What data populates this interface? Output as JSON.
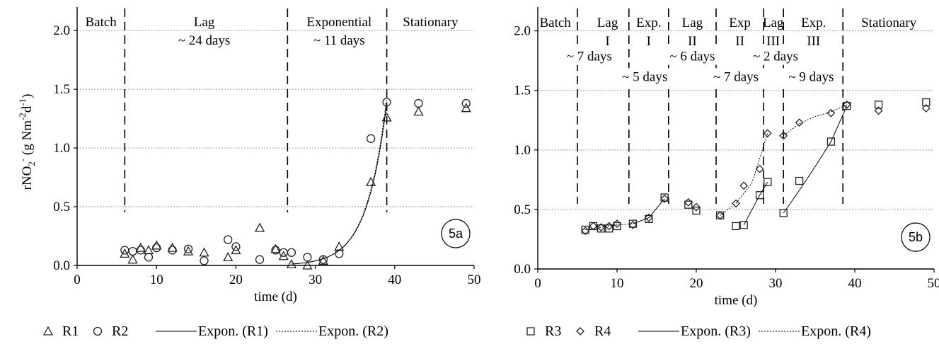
{
  "colors": {
    "grid": "#9a9a9a",
    "axis": "#000000",
    "marker": "#222222",
    "line": "#000000"
  },
  "charts": [
    {
      "tag": "5a",
      "chart_data": {
        "type": "scatter",
        "xlabel": "time (d)",
        "ylabel_parts": [
          "rNO",
          "2",
          "-",
          " (g Nm",
          "-2",
          "d",
          "-1",
          ")"
        ],
        "xlim": [
          0,
          50
        ],
        "ylim": [
          0,
          2.2
        ],
        "xticks": [
          0,
          10,
          20,
          30,
          40,
          50
        ],
        "yticks": [
          0.0,
          0.5,
          1.0,
          1.5,
          2.0
        ],
        "xtick_labels": [
          "0",
          "10",
          "20",
          "30",
          "40",
          "50"
        ],
        "ytick_labels": [
          "0.0",
          "0.5",
          "1.0",
          "1.5",
          "2.0"
        ],
        "grid": "horizontal dotted",
        "series": [
          {
            "name": "R1",
            "marker": "triangle",
            "points": [
              [
                6,
                0.1
              ],
              [
                7,
                0.05
              ],
              [
                8,
                0.15
              ],
              [
                9,
                0.13
              ],
              [
                10,
                0.17
              ],
              [
                12,
                0.15
              ],
              [
                14,
                0.12
              ],
              [
                16,
                0.11
              ],
              [
                19,
                0.07
              ],
              [
                20,
                0.13
              ],
              [
                23,
                0.32
              ],
              [
                25,
                0.14
              ],
              [
                26,
                0.08
              ],
              [
                27,
                0.01
              ],
              [
                29,
                0.0
              ],
              [
                31,
                0.04
              ],
              [
                33,
                0.16
              ],
              [
                37,
                0.71
              ],
              [
                39,
                1.26
              ],
              [
                43,
                1.31
              ],
              [
                49,
                1.34
              ]
            ]
          },
          {
            "name": "R2",
            "marker": "circle",
            "points": [
              [
                6,
                0.13
              ],
              [
                7,
                0.12
              ],
              [
                8,
                0.13
              ],
              [
                9,
                0.07
              ],
              [
                10,
                0.15
              ],
              [
                12,
                0.13
              ],
              [
                14,
                0.14
              ],
              [
                16,
                0.04
              ],
              [
                19,
                0.22
              ],
              [
                20,
                0.16
              ],
              [
                23,
                0.05
              ],
              [
                25,
                0.13
              ],
              [
                26,
                0.11
              ],
              [
                27,
                0.11
              ],
              [
                29,
                0.07
              ],
              [
                31,
                0.05
              ],
              [
                33,
                0.1
              ],
              [
                37,
                1.08
              ],
              [
                39,
                1.39
              ],
              [
                43,
                1.38
              ],
              [
                49,
                1.38
              ]
            ]
          },
          {
            "name": "Expon. (R1)",
            "style": "solid",
            "fit": {
              "a": 2.52e-07,
              "b": 0.398,
              "x0": 27,
              "x1": 39
            }
          },
          {
            "name": "Expon. (R2)",
            "style": "dotted",
            "fit": {
              "a": 2.41e-07,
              "b": 0.4,
              "x0": 27,
              "x1": 39
            }
          }
        ],
        "phase_lines": [
          6,
          26.5,
          39
        ],
        "phases": [
          {
            "x": 3,
            "lines": [
              "Batch"
            ]
          },
          {
            "x": 16,
            "lines": [
              "Lag",
              "~ 24 days"
            ]
          },
          {
            "x": 33,
            "lines": [
              "Exponential",
              "~ 11 days"
            ]
          },
          {
            "x": 44.5,
            "lines": [
              "Stationary"
            ]
          }
        ]
      }
    },
    {
      "tag": "5b",
      "chart_data": {
        "type": "scatter",
        "xlabel": "time (d)",
        "xlim": [
          0,
          50
        ],
        "ylim": [
          0,
          2.2
        ],
        "xticks": [
          0,
          10,
          20,
          30,
          40,
          50
        ],
        "yticks": [
          0.0,
          0.5,
          1.0,
          1.5,
          2.0
        ],
        "xtick_labels": [
          "0",
          "10",
          "20",
          "30",
          "40",
          "50"
        ],
        "ytick_labels": [
          "0.0",
          "0.5",
          "1.0",
          "1.5",
          "2.0"
        ],
        "grid": "horizontal dotted",
        "series": [
          {
            "name": "R3",
            "marker": "square",
            "points": [
              [
                6,
                0.33
              ],
              [
                7,
                0.36
              ],
              [
                8,
                0.34
              ],
              [
                9,
                0.34
              ],
              [
                10,
                0.36
              ],
              [
                12,
                0.38
              ],
              [
                14,
                0.42
              ],
              [
                16,
                0.6
              ],
              [
                19,
                0.54
              ],
              [
                20,
                0.49
              ],
              [
                23,
                0.45
              ],
              [
                25,
                0.36
              ],
              [
                26,
                0.37
              ],
              [
                28,
                0.62
              ],
              [
                29,
                0.73
              ],
              [
                31,
                0.47
              ],
              [
                33,
                0.74
              ],
              [
                37,
                1.07
              ],
              [
                39,
                1.37
              ],
              [
                43,
                1.38
              ],
              [
                49,
                1.4
              ]
            ]
          },
          {
            "name": "R4",
            "marker": "diamond",
            "points": [
              [
                6,
                0.32
              ],
              [
                7,
                0.36
              ],
              [
                8,
                0.35
              ],
              [
                9,
                0.36
              ],
              [
                10,
                0.38
              ],
              [
                12,
                0.37
              ],
              [
                14,
                0.43
              ],
              [
                16,
                0.59
              ],
              [
                19,
                0.56
              ],
              [
                20,
                0.52
              ],
              [
                23,
                0.45
              ],
              [
                25,
                0.55
              ],
              [
                26,
                0.7
              ],
              [
                28,
                0.84
              ],
              [
                29,
                1.14
              ],
              [
                31,
                1.12
              ],
              [
                33,
                1.23
              ],
              [
                37,
                1.31
              ],
              [
                39,
                1.38
              ],
              [
                43,
                1.33
              ],
              [
                49,
                1.35
              ]
            ]
          },
          {
            "name": "Expon. (R3)",
            "style": "solid",
            "segments": [
              [
                [
                  12,
                  0.38
                ],
                [
                  14,
                  0.43
                ],
                [
                  16,
                  0.59
                ]
              ],
              [
                [
                  26,
                  0.37
                ],
                [
                  28,
                  0.62
                ],
                [
                  29,
                  0.73
                ]
              ],
              [
                [
                  31,
                  0.47
                ],
                [
                  33,
                  0.66
                ],
                [
                  35,
                  0.86
                ],
                [
                  37,
                  1.07
                ],
                [
                  39,
                  1.37
                ]
              ]
            ]
          },
          {
            "name": "Expon. (R4)",
            "style": "dotted",
            "segments": [
              [
                [
                  6,
                  0.33
                ],
                [
                  8,
                  0.35
                ],
                [
                  10,
                  0.37
                ],
                [
                  12,
                  0.38
                ]
              ],
              [
                [
                  23,
                  0.45
                ],
                [
                  25,
                  0.55
                ],
                [
                  27,
                  0.72
                ],
                [
                  29,
                  1.14
                ]
              ],
              [
                [
                  31,
                  1.12
                ],
                [
                  33,
                  1.22
                ],
                [
                  35,
                  1.28
                ],
                [
                  37,
                  1.32
                ],
                [
                  39,
                  1.38
                ]
              ]
            ]
          }
        ],
        "phase_lines": [
          5,
          11.5,
          16.5,
          22.5,
          28.5,
          31,
          38.5
        ],
        "phases": [
          {
            "x": 2.2,
            "lines": [
              "Batch"
            ]
          },
          {
            "x": 8.8,
            "lines": [
              "Lag",
              "I"
            ]
          },
          {
            "x": 14,
            "lines": [
              "Exp.",
              "I"
            ]
          },
          {
            "x": 19.5,
            "lines": [
              "Lag",
              "II"
            ]
          },
          {
            "x": 25.5,
            "lines": [
              "Exp",
              "II"
            ]
          },
          {
            "x": 29.7,
            "lines": [
              "Lag",
              "III"
            ]
          },
          {
            "x": 34.8,
            "lines": [
              "Exp.",
              "III"
            ]
          },
          {
            "x": 44.3,
            "lines": [
              "Stationary"
            ]
          }
        ],
        "durations": [
          {
            "x": 6.5,
            "y": 1.75,
            "text": "~ 7 days"
          },
          {
            "x": 13.5,
            "y": 1.58,
            "text": "~ 5 days"
          },
          {
            "x": 19.5,
            "y": 1.75,
            "text": "~ 6 days"
          },
          {
            "x": 25,
            "y": 1.58,
            "text": "~ 7 days"
          },
          {
            "x": 30,
            "y": 1.75,
            "text": "~ 2 days"
          },
          {
            "x": 34.5,
            "y": 1.58,
            "text": "~ 9 days"
          }
        ]
      }
    }
  ],
  "legends": [
    {
      "items": [
        {
          "marker": "triangle",
          "label": "R1"
        },
        {
          "marker": "circle",
          "label": "R2"
        },
        {
          "line": "solid",
          "label": "Expon. (R1)"
        },
        {
          "line": "dotted",
          "label": "Expon. (R2)"
        }
      ]
    },
    {
      "items": [
        {
          "marker": "square",
          "label": "R3"
        },
        {
          "marker": "diamond",
          "label": "R4"
        },
        {
          "line": "solid",
          "label": "Expon. (R3)"
        },
        {
          "line": "dotted",
          "label": "Expon. (R4)"
        }
      ]
    }
  ]
}
